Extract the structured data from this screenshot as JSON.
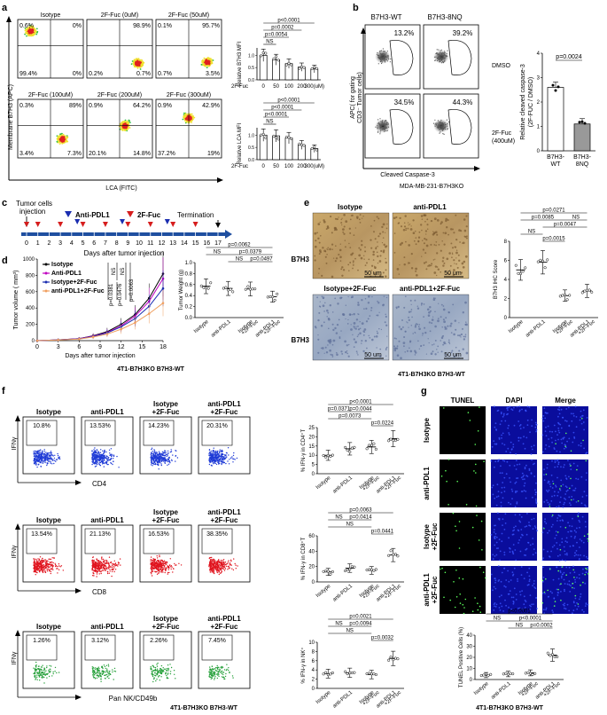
{
  "panels": {
    "a": {
      "label": "a",
      "ylabel": "Membrane B7H3 (APC)",
      "xlabel": "LCA (FITC)",
      "plots": [
        {
          "title": "Isotype",
          "q": [
            "0.6%",
            "0%",
            "99.4%",
            "0%"
          ]
        },
        {
          "title": "2F-Fuc (0uM)",
          "q": [
            "98.9%",
            "0.2%",
            "0.7%"
          ]
        },
        {
          "title": "2F-Fuc (50uM)",
          "q": [
            "0.1%",
            "95.7%",
            "0.7%",
            "3.5%"
          ]
        },
        {
          "title": "2F-Fuc (100uM)",
          "q": [
            "0.3%",
            "89%",
            "3.4%",
            "7.3%"
          ]
        },
        {
          "title": "2F-Fuc (200uM)",
          "q": [
            "0.9%",
            "64.2%",
            "20.1%",
            "14.8%"
          ]
        },
        {
          "title": "2F-Fuc (300uM)",
          "q": [
            "0.9%",
            "42.9%",
            "37.2%",
            "19%"
          ]
        }
      ],
      "bar1": {
        "ylabel": "Relative B7H3 MFI",
        "xprefix": "2F-Fuc",
        "x": [
          "0",
          "50",
          "100",
          "200",
          "300(uM)"
        ],
        "values": [
          1.0,
          0.82,
          0.66,
          0.52,
          0.44
        ],
        "sig": [
          "p<0.0001",
          "p=0.0002",
          "p=0.0054",
          "NS"
        ]
      },
      "bar2": {
        "ylabel": "Relative LCA MFI",
        "xprefix": "2F-Fuc",
        "x": [
          "0",
          "50",
          "100",
          "200",
          "300(uM)"
        ],
        "values": [
          1.0,
          0.97,
          0.88,
          0.6,
          0.45
        ],
        "sig": [
          "p<0.0001",
          "p<0.0001",
          "p<0.0001",
          "NS"
        ]
      }
    },
    "b": {
      "label": "b",
      "col1": "B7H3-WT",
      "col2": "B7H3-8NQ",
      "row1": "DMSO",
      "row2a": "2F-Fuc",
      "row2b": "(400uM)",
      "ylabel1": "APC( for gating",
      "ylabel2": "CD3⁻ Tumor cells)",
      "xlabel": "Cleaved Caspase-3",
      "caption": "MDA-MB-231-B7H3KO",
      "pct": [
        "13.2%",
        "39.2%",
        "34.5%",
        "44.3%"
      ],
      "bar": {
        "ylabel1": "Relative cleaved caspase-3",
        "ylabel2": "(2F-FUC / DMSO)",
        "categories": [
          "B7H3-WT",
          "B7H3-8NQ"
        ],
        "cat1a": "B7H3-",
        "cat1b": "WT",
        "cat2a": "B7H3-",
        "cat2b": "8NQ",
        "values": [
          2.6,
          1.1
        ],
        "sig": "p=0.0024",
        "yticks": [
          "0",
          "1",
          "2",
          "3",
          "4"
        ]
      }
    },
    "c": {
      "label": "c",
      "tumor1": "Tumor cells",
      "tumor2": "injection",
      "anti": "Anti-PDL1",
      "fuc": "2F-Fuc",
      "term": "Termination",
      "xlabel": "Days after tumor injection",
      "ticks": [
        "0",
        "1",
        "2",
        "3",
        "4",
        "5",
        "6",
        "7",
        "8",
        "9",
        "10",
        "11",
        "12",
        "13",
        "14",
        "15",
        "16",
        "17"
      ]
    },
    "d": {
      "label": "d",
      "ylabel": "Tumor volume ( mm³)",
      "xlabel": "Days after tumor injection",
      "xticks": [
        "0",
        "3",
        "6",
        "9",
        "12",
        "15",
        "18"
      ],
      "yticks": [
        "0",
        "200",
        "400",
        "600",
        "800",
        "1000"
      ],
      "legend": [
        "Isotype",
        "Anti-PDL1",
        "Isotype+2F-Fuc",
        "anti-PDL1+2F-Fuc"
      ],
      "sig": [
        "p=0.0381",
        "NS",
        "p=0.0476",
        "NS",
        "p=0.0063"
      ],
      "caption": "4T1-B7H3KO B7H3-WT",
      "weight": {
        "ylabel": "Tumor Weight (g)",
        "yticks": [
          "0.0",
          "0.2",
          "0.4",
          "0.6",
          "0.8",
          "1.0"
        ],
        "categories": [
          "Isotype",
          "anti-PDL1",
          "Isotype +2F-Fuc",
          "anti-PDL1 +2F-Fuc"
        ],
        "sig": [
          "p=0.0062",
          "NS",
          "p=0.0379",
          "NS",
          "p=0.0497"
        ]
      }
    },
    "e": {
      "label": "e",
      "col1": "Isotype",
      "col2": "anti-PDL1",
      "col3": "Isotype+2F-Fuc",
      "col4": "anti-PDL1+2F-Fuc",
      "row": "B7H3",
      "scale": "50 um",
      "caption": "4T1-B7H3KO B7H3-WT",
      "chart": {
        "ylabel": "B7H3 IHC Score",
        "yticks": [
          "0",
          "2",
          "4",
          "6",
          "8"
        ],
        "categories": [
          "Isotype",
          "anti-PDL1",
          "Isotype +2F-Fuc",
          "anti-PDL1 +2F-Fuc"
        ],
        "values": [
          5.0,
          5.8,
          2.3,
          2.8
        ],
        "sig": [
          "p=0.0271",
          "p=0.0085",
          "NS",
          "p=0.0047",
          "NS",
          "p=0.0015"
        ]
      }
    },
    "f": {
      "label": "f",
      "groups": [
        "Isotype",
        "anti-PDL1",
        "Isotype +2F-Fuc",
        "anti-PDL1 +2F-Fuc"
      ],
      "rows": [
        {
          "xlabel": "CD4",
          "ylabel": "IFNγ",
          "pct": [
            "10.8%",
            "13.53%",
            "14.23%",
            "20.31%"
          ],
          "color": "#1f3bd6",
          "chart": {
            "ylabel": "% IFN-γ in CD4⁺T",
            "yticks": [
              "0",
              "5",
              "10",
              "15",
              "20",
              "25"
            ],
            "values": [
              10,
              13.5,
              14.5,
              19
            ],
            "sig": [
              "p<0.0001",
              "p=0.0371",
              "p=0.0044",
              "p=0.0073",
              "p=0.0224"
            ]
          }
        },
        {
          "xlabel": "CD8",
          "ylabel": "IFNγ",
          "pct": [
            "13.54%",
            "21.13%",
            "16.53%",
            "38.35%"
          ],
          "color": "#e0141e",
          "chart": {
            "ylabel": "% IFN-γ in CD8⁺T",
            "yticks": [
              "0",
              "20",
              "40",
              "60"
            ],
            "values": [
              13,
              18,
              15,
              35
            ],
            "sig": [
              "p=0.0063",
              "NS",
              "p=0.0414",
              "NS",
              "p=0.0441"
            ]
          }
        },
        {
          "xlabel": "Pan NK/CD49b",
          "ylabel": "IFNγ",
          "pct": [
            "1.26%",
            "3.12%",
            "2.26%",
            "7.45%"
          ],
          "color": "#26a03a",
          "chart": {
            "ylabel": "% IFN-γ in NK⁺",
            "yticks": [
              "0",
              "2",
              "4",
              "6",
              "8",
              "10"
            ],
            "values": [
              3.2,
              3.4,
              3.0,
              6.5
            ],
            "sig": [
              "p=0.0021",
              "NS",
              "p=0.0094",
              "NS",
              "p=0.0032"
            ]
          }
        }
      ],
      "caption": "4T1-B7H3KO B7H3-WT"
    },
    "g": {
      "label": "g",
      "cols": [
        "TUNEL",
        "DAPI",
        "Merge"
      ],
      "rows": [
        "Isotype",
        "anti-PDL1",
        "Isotype +2F-Fuc",
        "anti-PDL1 +2F-Fuc"
      ],
      "chart": {
        "ylabel": "TUNEL Positive Cells (%)",
        "yticks": [
          "0",
          "10",
          "20",
          "30",
          "40"
        ],
        "categories": [
          "Isotype",
          "anti-PDL1",
          "Isotype +2F-Fuc",
          "anti-PDL1 +2F-Fuc"
        ],
        "values": [
          4,
          5,
          6,
          22
        ],
        "sig": [
          "p<0.0001",
          "NS",
          "p<0.0001",
          "NS",
          "p=0.0002"
        ]
      },
      "caption": "4T1-B7H3KO B7H3-WT"
    }
  }
}
